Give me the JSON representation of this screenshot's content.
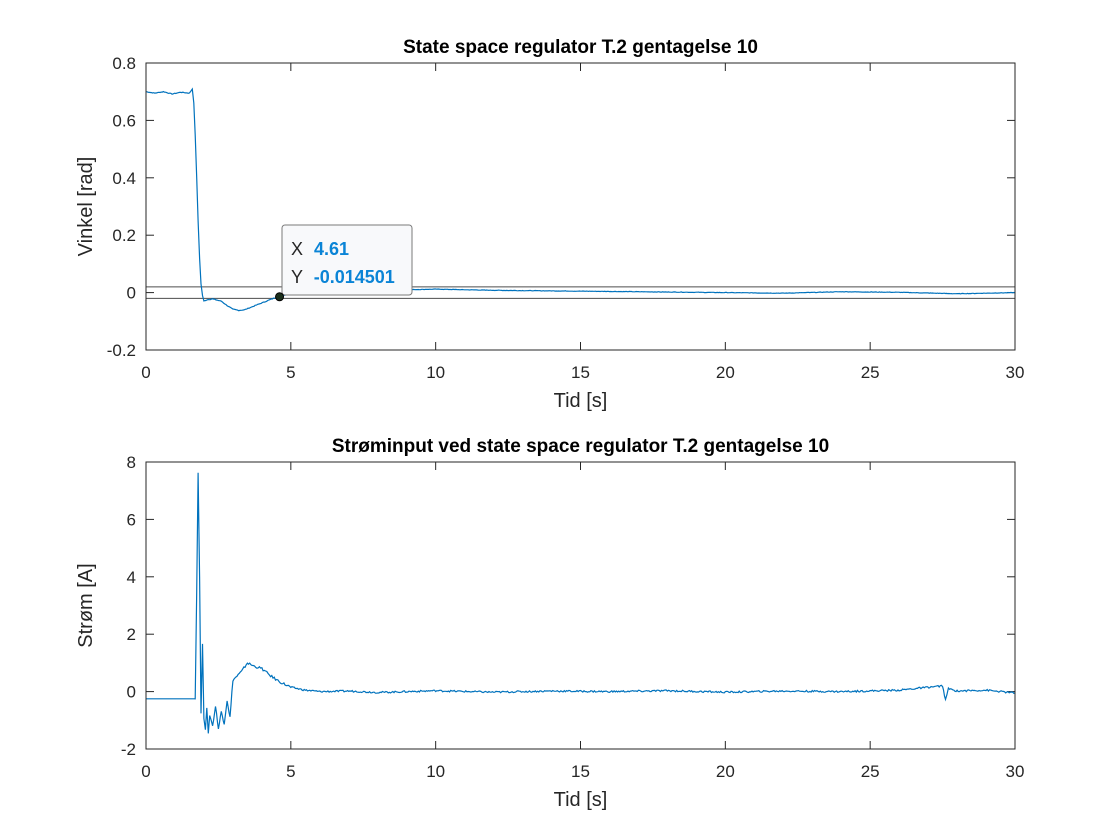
{
  "chart_data": [
    {
      "type": "line",
      "title": "State space regulator T.2 gentagelse 10",
      "xlabel": "Tid [s]",
      "ylabel": "Vinkel [rad]",
      "xlim": [
        0,
        30
      ],
      "ylim": [
        -0.2,
        0.8
      ],
      "xticks": [
        0,
        5,
        10,
        15,
        20,
        25,
        30
      ],
      "yticks": [
        -0.2,
        0,
        0.2,
        0.4,
        0.6,
        0.8
      ],
      "grid": false,
      "color": "#0072bd",
      "series": [
        {
          "x": [
            0,
            0.3,
            0.6,
            0.9,
            1.2,
            1.5,
            1.6,
            1.65,
            1.7,
            1.75,
            1.8,
            1.85,
            1.9,
            1.95,
            2.0,
            2.1,
            2.3,
            2.6,
            2.8,
            3.0,
            3.2,
            3.4,
            3.6,
            3.9,
            4.2,
            4.4,
            4.61,
            4.8,
            5.0,
            5.5,
            6,
            6.5,
            7,
            8,
            9,
            10,
            12,
            14,
            16,
            18,
            20,
            22,
            24,
            26,
            28,
            30
          ],
          "y": [
            0.7,
            0.695,
            0.7,
            0.692,
            0.698,
            0.695,
            0.71,
            0.66,
            0.55,
            0.4,
            0.25,
            0.12,
            0.03,
            -0.01,
            -0.03,
            -0.025,
            -0.022,
            -0.03,
            -0.045,
            -0.058,
            -0.062,
            -0.06,
            -0.052,
            -0.04,
            -0.028,
            -0.02,
            -0.0145,
            -0.008,
            -0.002,
            0.004,
            0.007,
            0.009,
            0.01,
            0.011,
            0.01,
            0.012,
            0.008,
            0.006,
            0.004,
            0.002,
            0.0,
            -0.002,
            0.003,
            0.001,
            -0.004,
            0.0
          ]
        }
      ],
      "reference_lines_y": [
        0.02,
        -0.02
      ],
      "datatip": {
        "x_label": "X",
        "x_value": "4.61",
        "y_label": "Y",
        "y_value": "-0.014501",
        "point": [
          4.61,
          -0.0145
        ]
      }
    },
    {
      "type": "line",
      "title": "Strøminput ved state space regulator T.2 gentagelse 10",
      "xlabel": "Tid [s]",
      "ylabel": "Strøm [A]",
      "xlim": [
        0,
        30
      ],
      "ylim": [
        -2,
        8
      ],
      "xticks": [
        0,
        5,
        10,
        15,
        20,
        25,
        30
      ],
      "yticks": [
        -2,
        0,
        2,
        4,
        6,
        8
      ],
      "grid": false,
      "color": "#0072bd",
      "series": [
        {
          "x": [
            0,
            1.0,
            1.7,
            1.75,
            1.8,
            1.85,
            1.9,
            1.95,
            2.0,
            2.05,
            2.1,
            2.15,
            2.2,
            2.3,
            2.4,
            2.5,
            2.6,
            2.7,
            2.8,
            2.9,
            3.0,
            3.1,
            3.3,
            3.5,
            3.7,
            4.0,
            4.3,
            4.6,
            5.0,
            5.5,
            6,
            7,
            8,
            9,
            10,
            12,
            14,
            16,
            18,
            20,
            22,
            24,
            26,
            27.5,
            27.6,
            27.7,
            28,
            29,
            30
          ],
          "y": [
            -0.25,
            -0.25,
            -0.25,
            3.5,
            7.6,
            4.0,
            -0.8,
            1.7,
            -0.9,
            -1.3,
            -0.6,
            -1.5,
            -0.8,
            -1.2,
            -0.5,
            -1.3,
            -0.7,
            -1.1,
            -0.3,
            -0.9,
            0.4,
            0.5,
            0.7,
            1.0,
            0.9,
            0.8,
            0.55,
            0.35,
            0.15,
            0.05,
            0.0,
            0.02,
            -0.03,
            0.0,
            0.03,
            -0.02,
            0.02,
            0.0,
            0.03,
            -0.02,
            0.02,
            0.0,
            0.05,
            0.2,
            -0.3,
            0.1,
            0.02,
            0.05,
            -0.05
          ]
        }
      ]
    }
  ]
}
